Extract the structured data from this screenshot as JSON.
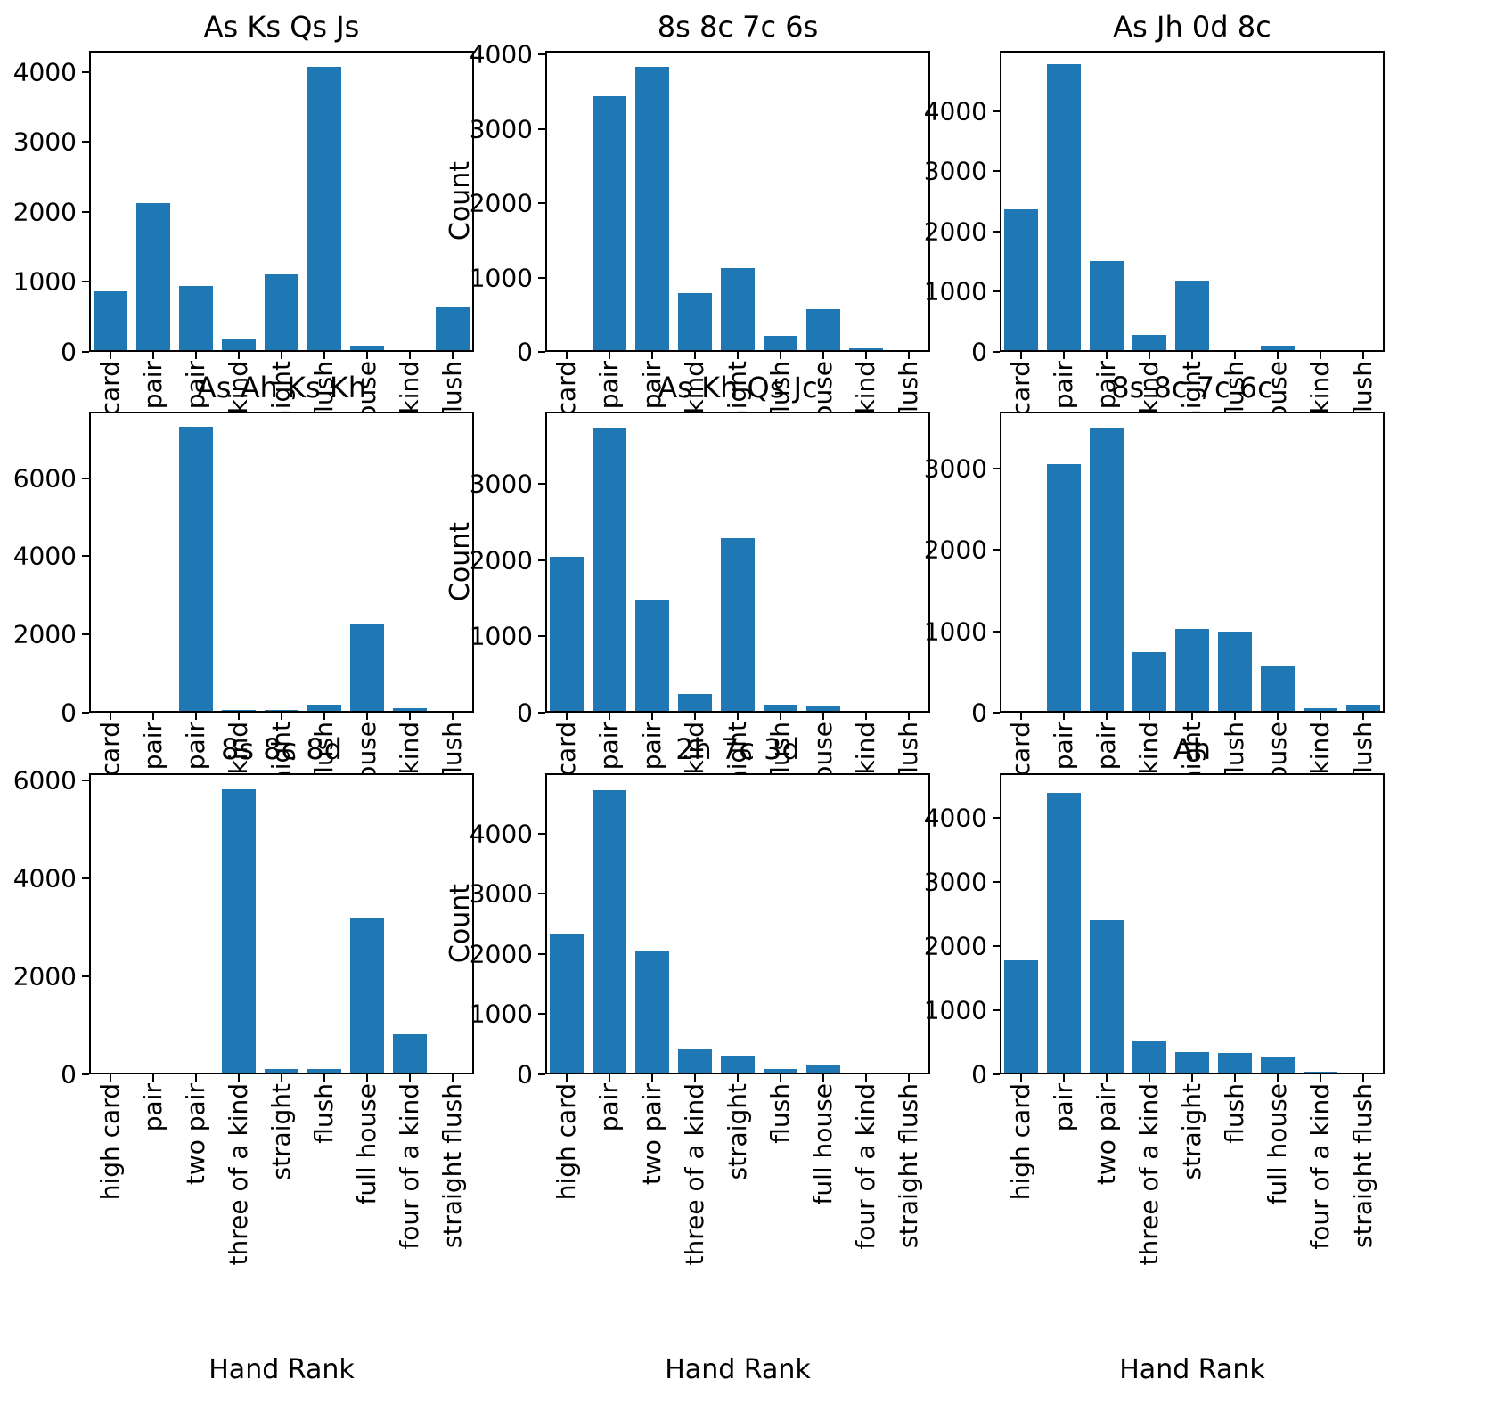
{
  "figure": {
    "ylabel": "Count",
    "xlabel": "Hand Rank",
    "bar_color": "#1f77b4",
    "background": "#ffffff",
    "text_color": "#000000",
    "grid": false,
    "layout": "3x3 grid of bar charts"
  },
  "chart_data": [
    {
      "type": "bar",
      "title": "As Ks Qs Js",
      "grid_position": [
        0,
        0
      ],
      "categories": [
        "high card",
        "pair",
        "two pair",
        "three of a kind",
        "straight",
        "flush",
        "full house",
        "four of a kind",
        "straight flush"
      ],
      "values": [
        850,
        2120,
        930,
        160,
        1100,
        4100,
        60,
        0,
        620
      ],
      "yticks": [
        0,
        1000,
        2000,
        3000,
        4000
      ],
      "ylim": [
        0,
        4300
      ]
    },
    {
      "type": "bar",
      "title": "8s 8c 7c 6s",
      "grid_position": [
        0,
        1
      ],
      "ylabel": "Count",
      "categories": [
        "high card",
        "pair",
        "two pair",
        "three of a kind",
        "straight",
        "flush",
        "full house",
        "four of a kind",
        "straight flush"
      ],
      "values": [
        0,
        3450,
        3850,
        770,
        1110,
        200,
        560,
        30,
        0
      ],
      "yticks": [
        0,
        1000,
        2000,
        3000,
        4000
      ],
      "ylim": [
        0,
        4050
      ]
    },
    {
      "type": "bar",
      "title": "As Jh 0d 8c",
      "grid_position": [
        0,
        2
      ],
      "categories": [
        "high card",
        "pair",
        "two pair",
        "three of a kind",
        "straight",
        "flush",
        "full house",
        "four of a kind",
        "straight flush"
      ],
      "values": [
        2370,
        4800,
        1500,
        250,
        1170,
        0,
        70,
        0,
        0
      ],
      "yticks": [
        0,
        1000,
        2000,
        3000,
        4000
      ],
      "ylim": [
        0,
        5000
      ]
    },
    {
      "type": "bar",
      "title": "As Ah Ks Kh",
      "grid_position": [
        1,
        0
      ],
      "categories": [
        "high card",
        "pair",
        "two pair",
        "three of a kind",
        "straight",
        "flush",
        "full house",
        "four of a kind",
        "straight flush"
      ],
      "values": [
        0,
        0,
        7350,
        20,
        30,
        170,
        2260,
        60,
        0
      ],
      "yticks": [
        0,
        2000,
        4000,
        6000
      ],
      "ylim": [
        0,
        7700
      ]
    },
    {
      "type": "bar",
      "title": "As Kh Qs Jc",
      "grid_position": [
        1,
        1
      ],
      "ylabel": "Count",
      "categories": [
        "high card",
        "pair",
        "two pair",
        "three of a kind",
        "straight",
        "flush",
        "full house",
        "four of a kind",
        "straight flush"
      ],
      "values": [
        2050,
        3760,
        1470,
        230,
        2300,
        80,
        70,
        0,
        0
      ],
      "yticks": [
        0,
        1000,
        2000,
        3000
      ],
      "ylim": [
        0,
        3950
      ]
    },
    {
      "type": "bar",
      "title": "8s 8c 7c 6c",
      "grid_position": [
        1,
        2
      ],
      "categories": [
        "high card",
        "pair",
        "two pair",
        "three of a kind",
        "straight",
        "flush",
        "full house",
        "four of a kind",
        "straight flush"
      ],
      "values": [
        0,
        3070,
        3520,
        730,
        1020,
        990,
        550,
        30,
        80
      ],
      "yticks": [
        0,
        1000,
        2000,
        3000
      ],
      "ylim": [
        0,
        3700
      ]
    },
    {
      "type": "bar",
      "title": "8s 8c 8d",
      "grid_position": [
        2,
        0
      ],
      "xlabel": "Hand Rank",
      "categories": [
        "high card",
        "pair",
        "two pair",
        "three of a kind",
        "straight",
        "flush",
        "full house",
        "four of a kind",
        "straight flush"
      ],
      "values": [
        0,
        0,
        0,
        5850,
        80,
        80,
        3200,
        800,
        0
      ],
      "yticks": [
        0,
        2000,
        4000,
        6000
      ],
      "ylim": [
        0,
        6150
      ]
    },
    {
      "type": "bar",
      "title": "2h 7c 3d",
      "grid_position": [
        2,
        1
      ],
      "ylabel": "Count",
      "xlabel": "Hand Rank",
      "categories": [
        "high card",
        "pair",
        "two pair",
        "three of a kind",
        "straight",
        "flush",
        "full house",
        "four of a kind",
        "straight flush"
      ],
      "values": [
        2340,
        4750,
        2030,
        400,
        290,
        60,
        130,
        0,
        0
      ],
      "yticks": [
        0,
        1000,
        2000,
        3000,
        4000
      ],
      "ylim": [
        0,
        5000
      ]
    },
    {
      "type": "bar",
      "title": "Ah",
      "grid_position": [
        2,
        2
      ],
      "xlabel": "Hand Rank",
      "categories": [
        "high card",
        "pair",
        "two pair",
        "three of a kind",
        "straight",
        "flush",
        "full house",
        "four of a kind",
        "straight flush"
      ],
      "values": [
        1780,
        4420,
        2400,
        500,
        330,
        310,
        240,
        20,
        0
      ],
      "yticks": [
        0,
        1000,
        2000,
        3000,
        4000
      ],
      "ylim": [
        0,
        4700
      ]
    }
  ]
}
